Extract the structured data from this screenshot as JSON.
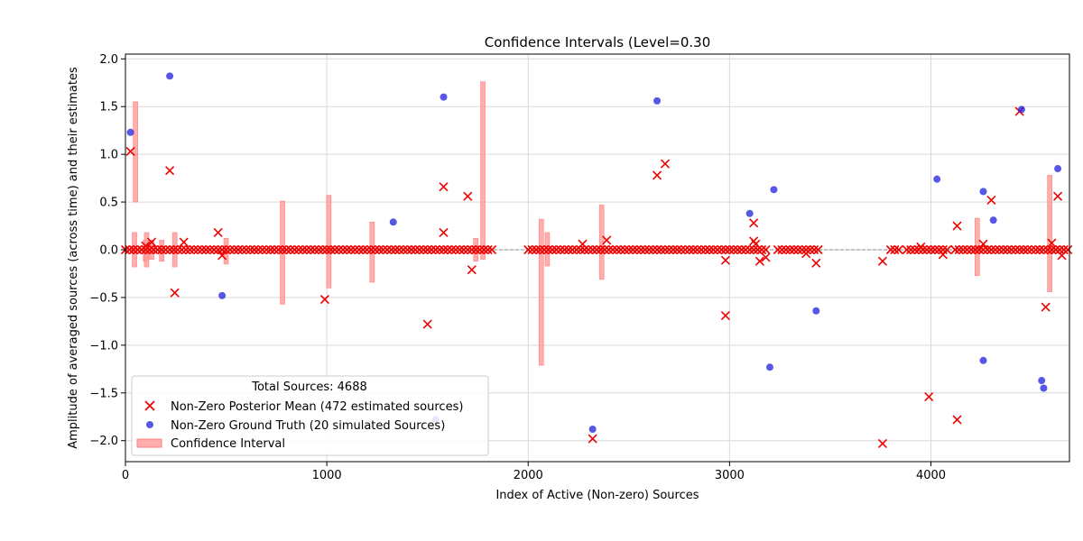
{
  "chart_data": {
    "type": "scatter",
    "title": "Confidence Intervals (Level=0.30",
    "xlabel": "Index of Active (Non-zero) Sources",
    "ylabel": "Amplitude of averaged sources (across time) and their estimates",
    "xlim": [
      0,
      4688
    ],
    "ylim": [
      -2.22,
      2.05
    ],
    "xticks": [
      0,
      1000,
      2000,
      3000,
      4000
    ],
    "xtick_labels": [
      "0",
      "1000",
      "2000",
      "3000",
      "4000"
    ],
    "yticks": [
      -2.0,
      -1.5,
      -1.0,
      -0.5,
      0.0,
      0.5,
      1.0,
      1.5,
      2.0
    ],
    "ytick_labels": [
      "−2.0",
      "−1.5",
      "−1.0",
      "−0.5",
      "0.0",
      "0.5",
      "1.0",
      "1.5",
      "2.0"
    ],
    "grid": true,
    "zero_line": true,
    "legend": {
      "title": "Total Sources: 4688",
      "placement": "lower-left",
      "entries": [
        "Non-Zero Posterior Mean (472 estimated sources)",
        "Non-Zero Ground Truth (20 simulated Sources)",
        "Confidence Interval"
      ]
    },
    "colors": {
      "estimate": "#ee0000",
      "ground_truth": "#1f1fdd",
      "interval": "#ff9999",
      "grid": "#d9d9d9"
    },
    "series": [
      {
        "name": "Non-Zero Posterior Mean (472 estimated sources)",
        "marker": "x",
        "points": [
          [
            25,
            1.03
          ],
          [
            220,
            0.83
          ],
          [
            245,
            -0.45
          ],
          [
            460,
            0.18
          ],
          [
            480,
            -0.06
          ],
          [
            290,
            0.08
          ],
          [
            130,
            0.08
          ],
          [
            100,
            0.04
          ],
          [
            990,
            -0.52
          ],
          [
            1500,
            -0.78
          ],
          [
            1580,
            0.66
          ],
          [
            1580,
            0.18
          ],
          [
            1700,
            0.56
          ],
          [
            1720,
            -0.21
          ],
          [
            2270,
            0.06
          ],
          [
            2320,
            -1.98
          ],
          [
            2390,
            0.1
          ],
          [
            2640,
            0.78
          ],
          [
            2680,
            0.9
          ],
          [
            2980,
            -0.11
          ],
          [
            2980,
            -0.69
          ],
          [
            3120,
            0.28
          ],
          [
            3120,
            0.09
          ],
          [
            3130,
            0.06
          ],
          [
            3150,
            -0.12
          ],
          [
            3180,
            -0.08
          ],
          [
            3380,
            -0.04
          ],
          [
            3430,
            -0.14
          ],
          [
            3760,
            -2.03
          ],
          [
            3760,
            -0.12
          ],
          [
            3950,
            0.03
          ],
          [
            3990,
            -1.54
          ],
          [
            4060,
            -0.05
          ],
          [
            4130,
            0.25
          ],
          [
            4130,
            -1.78
          ],
          [
            4260,
            0.06
          ],
          [
            4300,
            0.52
          ],
          [
            4440,
            1.45
          ],
          [
            4570,
            -0.6
          ],
          [
            4600,
            0.07
          ],
          [
            4630,
            0.56
          ],
          [
            4650,
            -0.06
          ]
        ],
        "zero_points": [
          [
            0,
            1820
          ],
          [
            2000,
            3180
          ],
          [
            3240,
            3440
          ],
          [
            3800,
            3840
          ],
          [
            3880,
            4080
          ],
          [
            4120,
            4688
          ]
        ]
      },
      {
        "name": "Non-Zero Ground Truth (20 simulated Sources)",
        "marker": "circle",
        "points": [
          [
            25,
            1.23
          ],
          [
            220,
            1.82
          ],
          [
            480,
            -0.48
          ],
          [
            1330,
            0.29
          ],
          [
            1580,
            1.6
          ],
          [
            2320,
            -1.88
          ],
          [
            2640,
            1.56
          ],
          [
            3100,
            0.38
          ],
          [
            3200,
            -1.23
          ],
          [
            3220,
            0.63
          ],
          [
            3430,
            -0.64
          ],
          [
            4030,
            0.74
          ],
          [
            4260,
            0.61
          ],
          [
            4260,
            -1.16
          ],
          [
            4310,
            0.31
          ],
          [
            4450,
            1.47
          ],
          [
            4550,
            -1.37
          ],
          [
            4560,
            -1.45
          ],
          [
            4630,
            0.85
          ],
          [
            1540,
            -1.78
          ]
        ]
      },
      {
        "name": "Confidence Interval",
        "marker": "band",
        "intervals": [
          [
            45,
            -0.18,
            0.18
          ],
          [
            50,
            0.5,
            1.55
          ],
          [
            100,
            -0.12,
            0.1
          ],
          [
            105,
            -0.18,
            0.18
          ],
          [
            130,
            -0.1,
            0.1
          ],
          [
            180,
            -0.12,
            0.1
          ],
          [
            245,
            -0.18,
            0.18
          ],
          [
            500,
            -0.15,
            0.12
          ],
          [
            780,
            -0.57,
            0.51
          ],
          [
            1010,
            -0.4,
            0.57
          ],
          [
            1225,
            -0.34,
            0.29
          ],
          [
            1740,
            -0.12,
            0.12
          ],
          [
            1775,
            -0.1,
            1.76
          ],
          [
            2065,
            -1.21,
            0.32
          ],
          [
            2095,
            -0.17,
            0.18
          ],
          [
            2365,
            -0.31,
            0.47
          ],
          [
            4230,
            -0.27,
            0.33
          ],
          [
            4590,
            -0.44,
            0.78
          ]
        ]
      }
    ]
  }
}
